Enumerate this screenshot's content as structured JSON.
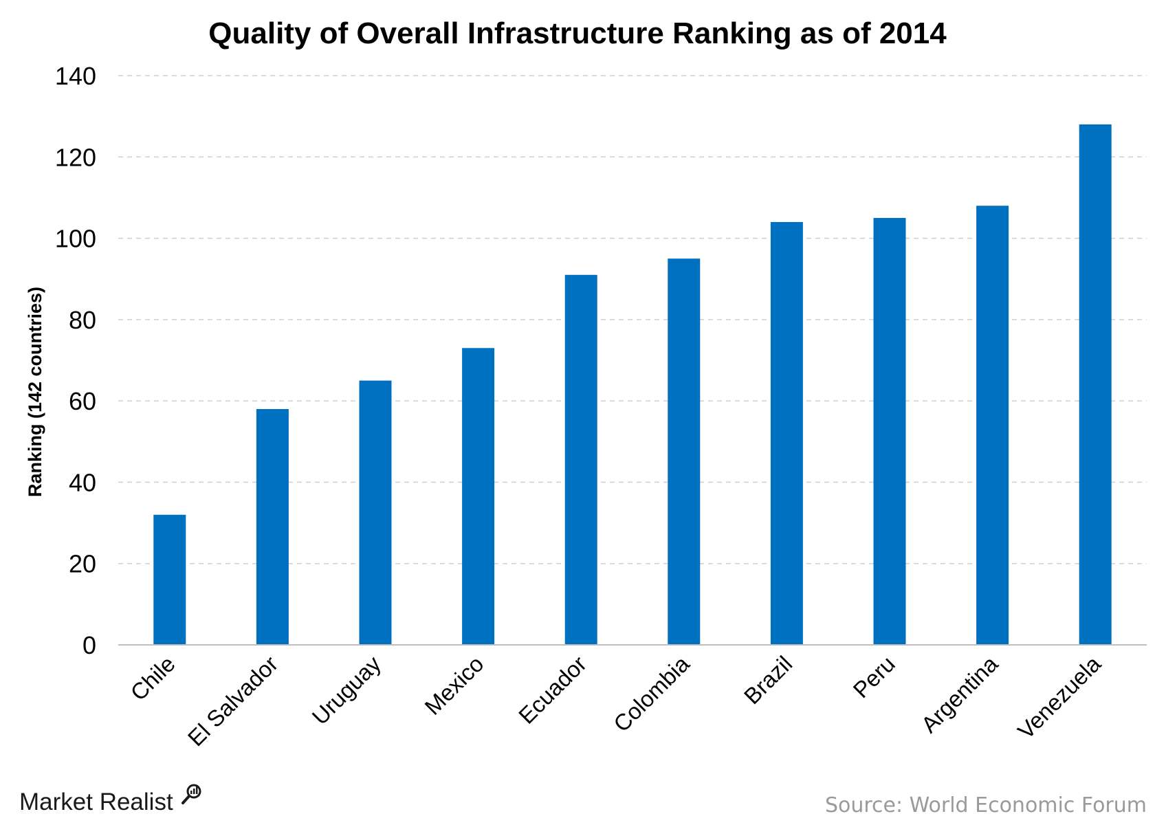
{
  "chart_data": {
    "type": "bar",
    "title": "Quality of Overall Infrastructure Ranking as of 2014",
    "xlabel": "",
    "ylabel": "Ranking (142 countries)",
    "categories": [
      "Chile",
      "El Salvador",
      "Uruguay",
      "Mexico",
      "Ecuador",
      "Colombia",
      "Brazil",
      "Peru",
      "Argentina",
      "Venezuela"
    ],
    "values": [
      32,
      58,
      65,
      73,
      91,
      95,
      104,
      105,
      108,
      128
    ],
    "ylim": [
      0,
      140
    ],
    "yticks": [
      "0",
      "20",
      "40",
      "60",
      "80",
      "100",
      "120",
      "140"
    ],
    "grid": true,
    "legend": "none",
    "colors": {
      "bar": "#0070C0",
      "grid": "#d0d0d0",
      "axis": "#bfbfbf"
    }
  },
  "footer": {
    "brand": "Market Realist",
    "brand_icon": "magnifier-chart-icon",
    "source": "Source: World Economic Forum"
  }
}
